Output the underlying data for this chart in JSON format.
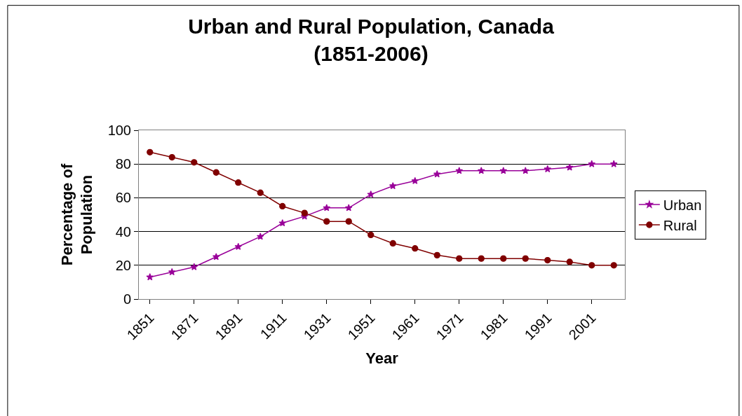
{
  "chart_data": {
    "type": "line",
    "title": "Urban and Rural Population, Canada (1851-2006)",
    "xlabel": "Year",
    "ylabel": "Percentage of Population",
    "categories": [
      "1851",
      null,
      "1871",
      null,
      "1891",
      null,
      "1911",
      null,
      "1931",
      null,
      "1951",
      null,
      "1961",
      null,
      "1971",
      null,
      "1981",
      null,
      "1991",
      null,
      "2001",
      null
    ],
    "series": [
      {
        "name": "Urban",
        "color": "#990099",
        "marker": "star",
        "values": [
          13,
          16,
          19,
          25,
          31,
          37,
          45,
          49,
          54,
          54,
          62,
          67,
          70,
          74,
          76,
          76,
          76,
          76,
          77,
          78,
          80,
          80
        ]
      },
      {
        "name": "Rural",
        "color": "#800000",
        "marker": "circle",
        "values": [
          87,
          84,
          81,
          75,
          69,
          63,
          55,
          51,
          46,
          46,
          38,
          33,
          30,
          26,
          24,
          24,
          24,
          24,
          23,
          22,
          20,
          20
        ]
      }
    ],
    "ylim": [
      0,
      100
    ],
    "yticks": [
      0,
      20,
      40,
      60,
      80,
      100
    ],
    "grid": "y",
    "legend": "right"
  }
}
